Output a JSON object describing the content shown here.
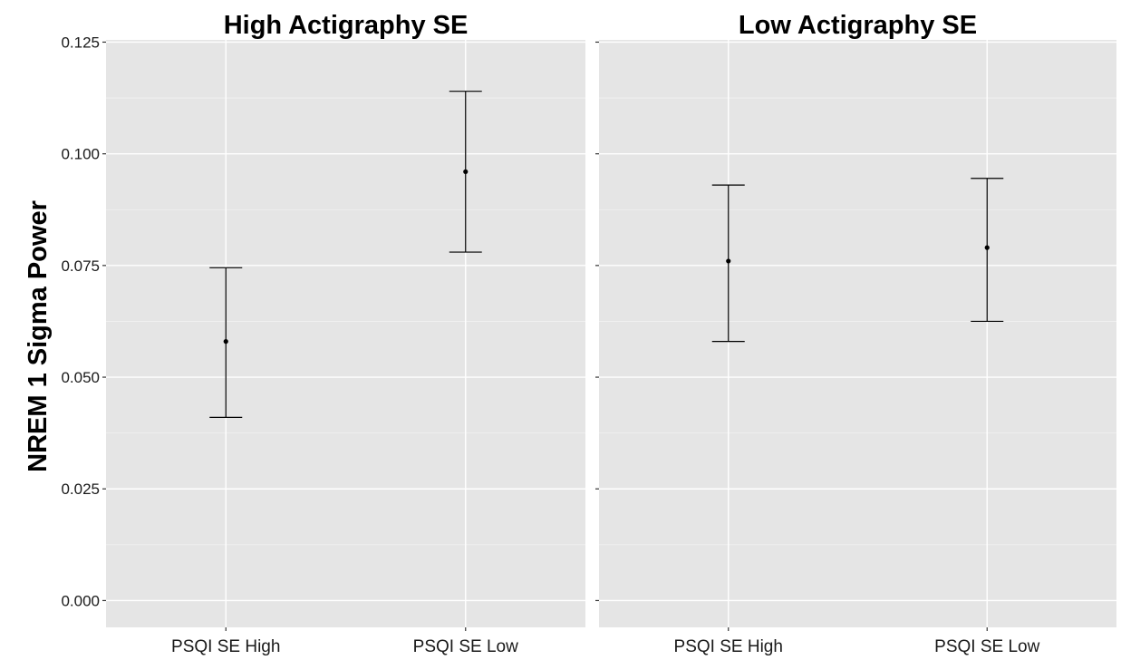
{
  "chart_data": {
    "type": "errorbar",
    "ylabel": "NREM 1 Sigma Power",
    "xlabel": "",
    "ylim": [
      -0.006,
      0.1255
    ],
    "yticks": [
      0.0,
      0.025,
      0.05,
      0.075,
      0.1,
      0.125
    ],
    "ytick_labels": [
      "0.000",
      "0.025",
      "0.050",
      "0.075",
      "0.100",
      "0.125"
    ],
    "grid": true,
    "legend": "none",
    "panels": [
      {
        "title": "High Actigraphy SE",
        "categories": [
          "PSQI SE High",
          "PSQI SE Low"
        ],
        "mean": [
          0.058,
          0.096
        ],
        "lower": [
          0.041,
          0.078
        ],
        "upper": [
          0.0745,
          0.114
        ]
      },
      {
        "title": "Low Actigraphy SE",
        "categories": [
          "PSQI SE High",
          "PSQI SE Low"
        ],
        "mean": [
          0.076,
          0.079
        ],
        "lower": [
          0.058,
          0.0625
        ],
        "upper": [
          0.093,
          0.0945
        ]
      }
    ],
    "colors": {
      "panel_bg": "#e5e5e5",
      "grid_major": "#ffffff",
      "grid_minor": "#f2f2f2",
      "marks": "#000000"
    }
  }
}
